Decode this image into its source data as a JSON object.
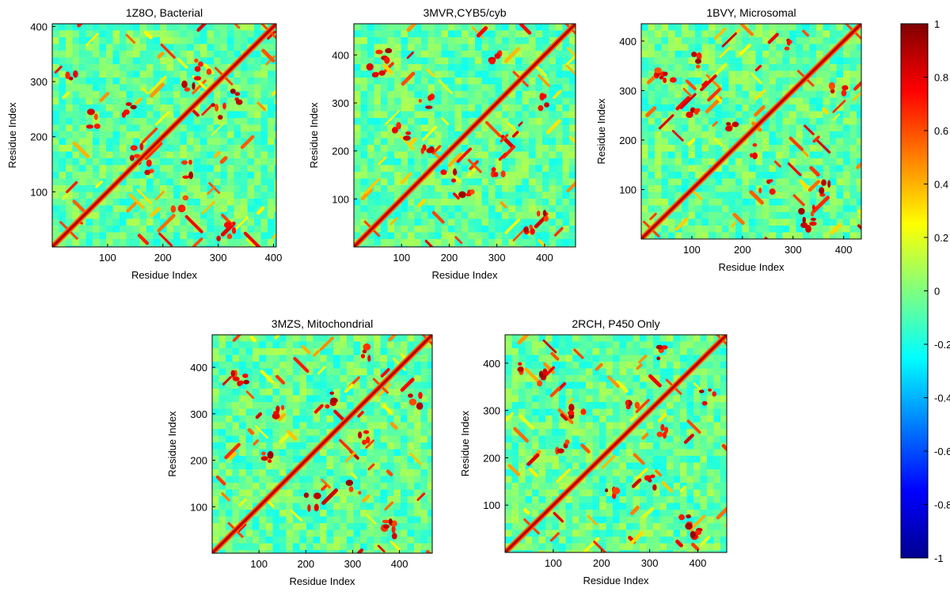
{
  "chart_data": [
    {
      "type": "heatmap",
      "title": "1Z8O, Bacterial",
      "xlabel": "Residue Index",
      "ylabel": "Residue Index",
      "n_residues": 405,
      "xlim": [
        1,
        405
      ],
      "ylim": [
        1,
        405
      ],
      "xticks": [
        100,
        200,
        300,
        400
      ],
      "yticks": [
        100,
        200,
        300,
        400
      ],
      "cross_points": [
        30,
        310,
        392
      ],
      "side_blobs": [
        [
          315,
          30
        ],
        [
          140,
          250
        ],
        [
          230,
          80
        ],
        [
          170,
          150
        ],
        [
          330,
          270
        ],
        [
          300,
          250
        ]
      ]
    },
    {
      "type": "heatmap",
      "title": "3MVR,CYB5/cyb",
      "xlabel": "Residue Index",
      "ylabel": "Residue Index",
      "n_residues": 465,
      "xlim": [
        1,
        465
      ],
      "ylim": [
        1,
        465
      ],
      "xticks": [
        100,
        200,
        300,
        400
      ],
      "yticks": [
        100,
        200,
        300,
        400
      ],
      "cross_points": [
        38,
        350,
        455
      ],
      "side_blobs": [
        [
          370,
          45
        ],
        [
          60,
          400
        ],
        [
          240,
          100
        ],
        [
          150,
          300
        ],
        [
          300,
          400
        ],
        [
          200,
          150
        ]
      ]
    },
    {
      "type": "heatmap",
      "title": "1BVY, Microsomal",
      "xlabel": "Residue Index",
      "ylabel": "Residue Index",
      "n_residues": 435,
      "xlim": [
        1,
        435
      ],
      "ylim": [
        1,
        435
      ],
      "xticks": [
        100,
        200,
        300,
        400
      ],
      "yticks": [
        100,
        200,
        300,
        400
      ],
      "cross_points": [
        20,
        325,
        420
      ],
      "side_blobs": [
        [
          330,
          30
        ],
        [
          50,
          330
        ],
        [
          180,
          220
        ],
        [
          250,
          110
        ],
        [
          360,
          100
        ],
        [
          300,
          390
        ]
      ]
    },
    {
      "type": "heatmap",
      "title": "3MZS, Mitochondrial",
      "xlabel": "Residue Index",
      "ylabel": "Residue Index",
      "n_residues": 470,
      "xlim": [
        1,
        470
      ],
      "ylim": [
        1,
        470
      ],
      "xticks": [
        100,
        200,
        300,
        400
      ],
      "yticks": [
        100,
        200,
        300,
        400
      ],
      "cross_points": [
        50,
        360,
        460
      ],
      "side_blobs": [
        [
          380,
          50
        ],
        [
          60,
          380
        ],
        [
          210,
          110
        ],
        [
          140,
          300
        ],
        [
          330,
          250
        ],
        [
          430,
          330
        ]
      ]
    },
    {
      "type": "heatmap",
      "title": "2RCH, P450 Only",
      "xlabel": "Residue Index",
      "ylabel": "Residue Index",
      "n_residues": 460,
      "xlim": [
        1,
        460
      ],
      "ylim": [
        1,
        460
      ],
      "xticks": [
        100,
        200,
        300,
        400
      ],
      "yticks": [
        100,
        200,
        300,
        400
      ],
      "cross_points": [
        55,
        350,
        450
      ],
      "side_blobs": [
        [
          390,
          40
        ],
        [
          70,
          370
        ],
        [
          220,
          120
        ],
        [
          150,
          300
        ],
        [
          320,
          260
        ],
        [
          420,
          330
        ]
      ]
    }
  ],
  "colorbar": {
    "min": -1,
    "max": 1,
    "ticks": [
      "1",
      "0.8",
      "0.6",
      "0.4",
      "0.2",
      "0",
      "-0.2",
      "-0.4",
      "-0.6",
      "-0.8",
      "-1"
    ],
    "colormap": "jet",
    "colors": [
      "#00008f",
      "#0000ff",
      "#007fff",
      "#00ffff",
      "#7fff7f",
      "#ffff00",
      "#ff7f00",
      "#ff0000",
      "#800000"
    ]
  }
}
